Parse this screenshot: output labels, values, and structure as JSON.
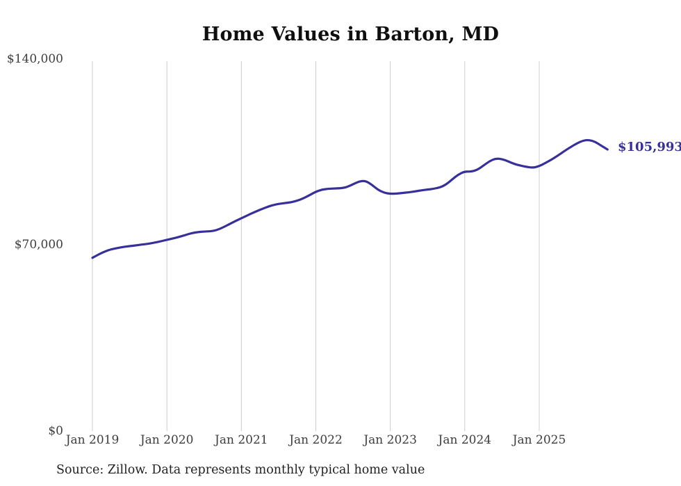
{
  "title": "Home Values in Barton, MD",
  "end_label": "$105,993",
  "source": "Source: Zillow. Data represents monthly typical home value",
  "colors": {
    "line": "#37309b",
    "grid": "#cccccc",
    "axis_text": "#3d3d3d",
    "title_text": "#0f0f0f",
    "source_text": "#1f1f1f"
  },
  "chart_data": {
    "type": "line",
    "title": "Home Values in Barton, MD",
    "xlabel": "",
    "ylabel": "",
    "frequency": "monthly",
    "x_start": "Jan 2019",
    "x_end": "Dec 2025",
    "x_ticks": [
      "Jan 2019",
      "Jan 2020",
      "Jan 2021",
      "Jan 2022",
      "Jan 2023",
      "Jan 2024",
      "Jan 2025"
    ],
    "y_ticks": [
      {
        "label": "$0",
        "value": 0
      },
      {
        "label": "$70,000",
        "value": 70000
      },
      {
        "label": "$140,000",
        "value": 140000
      }
    ],
    "ylim": [
      0,
      140000
    ],
    "grid": "vertical-only",
    "legend": "none",
    "final_value": 105993,
    "final_value_label": "$105,993",
    "series": [
      {
        "name": "Typical home value",
        "values": [
          65200,
          66500,
          67600,
          68400,
          68900,
          69300,
          69600,
          69900,
          70200,
          70500,
          70900,
          71400,
          72000,
          72500,
          73100,
          73800,
          74500,
          74900,
          75100,
          75200,
          75600,
          76600,
          77800,
          79000,
          80100,
          81200,
          82300,
          83300,
          84200,
          85000,
          85500,
          85800,
          86100,
          86700,
          87600,
          88800,
          90100,
          90900,
          91200,
          91300,
          91400,
          91800,
          92900,
          94000,
          94200,
          92800,
          90800,
          89700,
          89300,
          89400,
          89600,
          89900,
          90200,
          90600,
          90900,
          91200,
          91700,
          92800,
          94800,
          96600,
          97700,
          97600,
          98300,
          99900,
          101600,
          102600,
          102400,
          101500,
          100500,
          99900,
          99400,
          99100,
          99700,
          100900,
          102200,
          103700,
          105300,
          106800,
          108200,
          109300,
          109600,
          108900,
          107400,
          105993
        ]
      }
    ]
  }
}
